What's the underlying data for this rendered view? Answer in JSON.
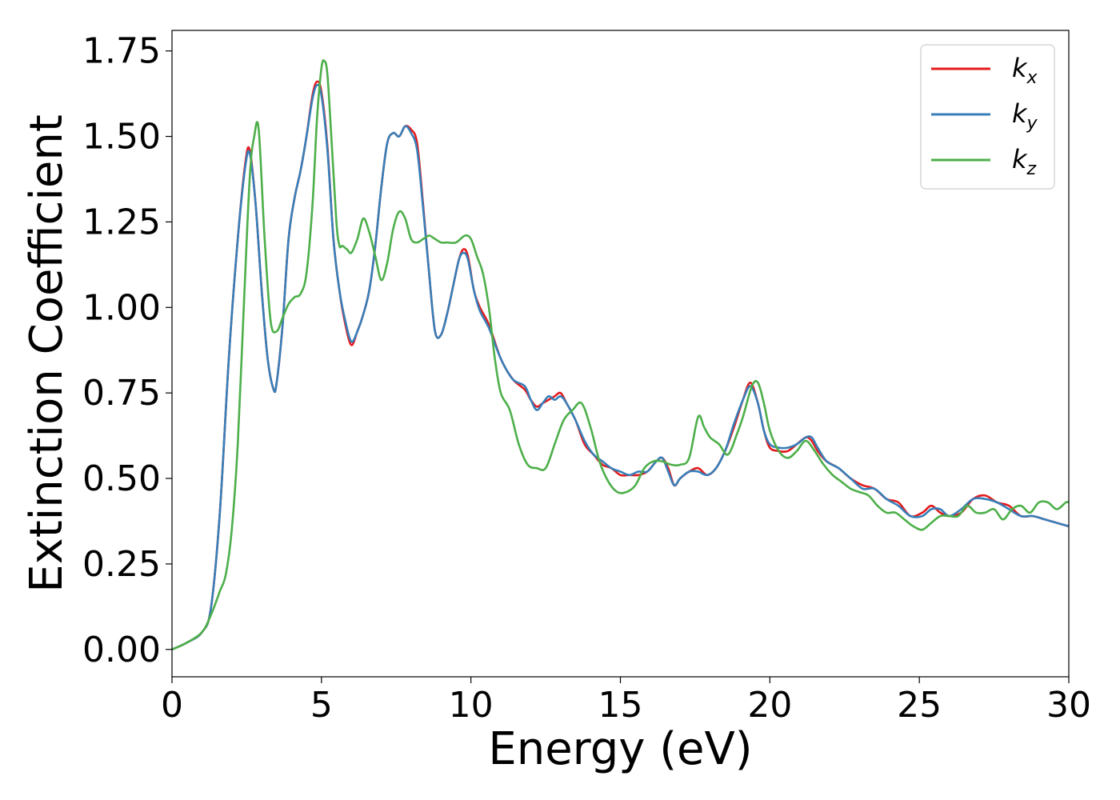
{
  "chart_data": {
    "type": "line",
    "xlabel": "Energy (eV)",
    "ylabel": "Extinction Coefficient",
    "xlim": [
      0,
      30
    ],
    "ylim": [
      -0.08,
      1.81
    ],
    "xticks": [
      0,
      5,
      10,
      15,
      20,
      25,
      30
    ],
    "xtick_labels": [
      "0",
      "5",
      "10",
      "15",
      "20",
      "25",
      "30"
    ],
    "yticks": [
      0.0,
      0.25,
      0.5,
      0.75,
      1.0,
      1.25,
      1.5,
      1.75
    ],
    "ytick_labels": [
      "0.00",
      "0.25",
      "0.50",
      "0.75",
      "1.00",
      "1.25",
      "1.50",
      "1.75"
    ],
    "grid": false,
    "legend_position": "top-right",
    "series": [
      {
        "name": "k_x",
        "label_main": "k",
        "label_sub": "x",
        "color": "#e41a1c",
        "x": [
          0,
          0.5,
          1.0,
          1.3,
          1.6,
          1.9,
          2.2,
          2.45,
          2.6,
          2.8,
          3.0,
          3.2,
          3.4,
          3.5,
          3.7,
          3.9,
          4.1,
          4.3,
          4.5,
          4.7,
          4.85,
          5.0,
          5.2,
          5.4,
          5.6,
          5.8,
          6.0,
          6.2,
          6.4,
          6.6,
          6.8,
          7.0,
          7.2,
          7.4,
          7.6,
          7.8,
          8.0,
          8.2,
          8.4,
          8.6,
          8.8,
          9.0,
          9.2,
          9.4,
          9.6,
          9.75,
          9.9,
          10.1,
          10.3,
          10.6,
          11.0,
          11.4,
          11.8,
          12.0,
          12.2,
          12.4,
          12.6,
          12.8,
          13.0,
          13.2,
          13.5,
          13.8,
          14.1,
          14.4,
          14.7,
          15.0,
          15.3,
          15.6,
          15.9,
          16.2,
          16.4,
          16.6,
          16.8,
          17.0,
          17.3,
          17.6,
          17.9,
          18.2,
          18.5,
          18.8,
          19.1,
          19.35,
          19.6,
          19.8,
          20.0,
          20.3,
          20.6,
          20.9,
          21.2,
          21.4,
          21.6,
          21.9,
          22.3,
          22.7,
          23.1,
          23.5,
          23.9,
          24.3,
          24.7,
          25.1,
          25.4,
          25.7,
          26.0,
          26.4,
          26.8,
          27.2,
          27.6,
          28.0,
          28.4,
          28.8,
          29.2,
          29.6,
          30.0
        ],
        "y": [
          0.0,
          0.02,
          0.05,
          0.12,
          0.4,
          0.85,
          1.2,
          1.42,
          1.46,
          1.3,
          1.05,
          0.85,
          0.76,
          0.78,
          0.95,
          1.2,
          1.32,
          1.4,
          1.5,
          1.62,
          1.66,
          1.63,
          1.47,
          1.2,
          1.05,
          0.95,
          0.89,
          0.93,
          0.98,
          1.05,
          1.18,
          1.35,
          1.48,
          1.51,
          1.5,
          1.53,
          1.52,
          1.48,
          1.3,
          1.1,
          0.93,
          0.92,
          0.98,
          1.06,
          1.14,
          1.17,
          1.15,
          1.05,
          1.0,
          0.95,
          0.85,
          0.79,
          0.76,
          0.73,
          0.71,
          0.72,
          0.73,
          0.74,
          0.75,
          0.72,
          0.67,
          0.6,
          0.57,
          0.54,
          0.53,
          0.51,
          0.51,
          0.51,
          0.52,
          0.55,
          0.56,
          0.53,
          0.48,
          0.5,
          0.52,
          0.53,
          0.51,
          0.53,
          0.58,
          0.65,
          0.73,
          0.78,
          0.72,
          0.64,
          0.59,
          0.58,
          0.58,
          0.6,
          0.62,
          0.61,
          0.58,
          0.55,
          0.53,
          0.5,
          0.48,
          0.47,
          0.44,
          0.43,
          0.39,
          0.4,
          0.42,
          0.4,
          0.39,
          0.4,
          0.44,
          0.45,
          0.43,
          0.42,
          0.39,
          0.39,
          0.38,
          0.37,
          0.36
        ]
      },
      {
        "name": "k_y",
        "label_main": "k",
        "label_sub": "y",
        "color": "#377eb8",
        "x": [
          0,
          0.5,
          1.0,
          1.3,
          1.6,
          1.9,
          2.2,
          2.45,
          2.6,
          2.8,
          3.0,
          3.2,
          3.4,
          3.5,
          3.7,
          3.9,
          4.1,
          4.3,
          4.5,
          4.7,
          4.85,
          5.0,
          5.2,
          5.4,
          5.6,
          5.8,
          6.0,
          6.2,
          6.4,
          6.6,
          6.8,
          7.0,
          7.2,
          7.4,
          7.6,
          7.8,
          8.0,
          8.2,
          8.4,
          8.6,
          8.8,
          9.0,
          9.2,
          9.4,
          9.6,
          9.75,
          9.9,
          10.1,
          10.3,
          10.6,
          11.0,
          11.4,
          11.8,
          12.0,
          12.2,
          12.4,
          12.6,
          12.8,
          13.0,
          13.2,
          13.5,
          13.8,
          14.1,
          14.4,
          14.7,
          15.0,
          15.3,
          15.6,
          15.9,
          16.2,
          16.4,
          16.6,
          16.8,
          17.0,
          17.3,
          17.6,
          17.9,
          18.2,
          18.5,
          18.8,
          19.1,
          19.35,
          19.6,
          19.8,
          20.0,
          20.3,
          20.6,
          20.9,
          21.2,
          21.4,
          21.6,
          21.9,
          22.3,
          22.7,
          23.1,
          23.5,
          23.9,
          24.3,
          24.7,
          25.1,
          25.4,
          25.7,
          26.0,
          26.4,
          26.8,
          27.2,
          27.6,
          28.0,
          28.4,
          28.8,
          29.2,
          29.6,
          30.0
        ],
        "y": [
          0.0,
          0.02,
          0.05,
          0.12,
          0.4,
          0.85,
          1.2,
          1.41,
          1.45,
          1.3,
          1.05,
          0.85,
          0.76,
          0.78,
          0.95,
          1.2,
          1.32,
          1.4,
          1.5,
          1.61,
          1.65,
          1.62,
          1.46,
          1.2,
          1.05,
          0.96,
          0.9,
          0.93,
          0.98,
          1.05,
          1.18,
          1.35,
          1.48,
          1.51,
          1.5,
          1.53,
          1.51,
          1.46,
          1.29,
          1.1,
          0.93,
          0.92,
          0.98,
          1.06,
          1.14,
          1.16,
          1.14,
          1.05,
          0.99,
          0.94,
          0.85,
          0.79,
          0.77,
          0.73,
          0.7,
          0.72,
          0.74,
          0.73,
          0.74,
          0.72,
          0.67,
          0.61,
          0.57,
          0.55,
          0.53,
          0.52,
          0.51,
          0.52,
          0.52,
          0.55,
          0.56,
          0.52,
          0.48,
          0.5,
          0.52,
          0.52,
          0.51,
          0.53,
          0.58,
          0.66,
          0.73,
          0.77,
          0.72,
          0.64,
          0.6,
          0.59,
          0.59,
          0.6,
          0.62,
          0.62,
          0.59,
          0.55,
          0.53,
          0.5,
          0.47,
          0.47,
          0.44,
          0.42,
          0.39,
          0.39,
          0.41,
          0.41,
          0.39,
          0.41,
          0.44,
          0.44,
          0.43,
          0.41,
          0.39,
          0.39,
          0.38,
          0.37,
          0.36
        ]
      },
      {
        "name": "k_z",
        "label_main": "k",
        "label_sub": "z",
        "color": "#4daf4a",
        "x": [
          0,
          0.5,
          1.0,
          1.3,
          1.6,
          1.8,
          2.0,
          2.2,
          2.4,
          2.6,
          2.75,
          2.9,
          3.1,
          3.3,
          3.5,
          3.7,
          3.9,
          4.1,
          4.3,
          4.5,
          4.7,
          4.85,
          5.0,
          5.1,
          5.2,
          5.35,
          5.5,
          5.6,
          5.7,
          5.85,
          6.0,
          6.2,
          6.4,
          6.6,
          6.8,
          7.0,
          7.2,
          7.4,
          7.6,
          7.8,
          8.0,
          8.2,
          8.4,
          8.6,
          8.8,
          9.0,
          9.2,
          9.5,
          9.8,
          10.0,
          10.2,
          10.4,
          10.6,
          10.8,
          11.0,
          11.3,
          11.6,
          11.9,
          12.2,
          12.5,
          12.8,
          13.1,
          13.4,
          13.7,
          14.0,
          14.3,
          14.6,
          14.9,
          15.2,
          15.5,
          15.8,
          16.1,
          16.4,
          16.7,
          17.0,
          17.3,
          17.6,
          17.8,
          18.0,
          18.3,
          18.6,
          18.9,
          19.1,
          19.4,
          19.6,
          19.8,
          20.0,
          20.3,
          20.6,
          20.9,
          21.2,
          21.5,
          21.8,
          22.1,
          22.4,
          22.7,
          23.0,
          23.3,
          23.6,
          23.9,
          24.2,
          24.5,
          24.8,
          25.1,
          25.4,
          25.7,
          26.0,
          26.3,
          26.6,
          26.9,
          27.2,
          27.5,
          27.8,
          28.1,
          28.4,
          28.7,
          29.0,
          29.3,
          29.6,
          29.9,
          30.0
        ],
        "y": [
          0.0,
          0.02,
          0.05,
          0.1,
          0.17,
          0.22,
          0.35,
          0.6,
          1.0,
          1.38,
          1.5,
          1.52,
          1.2,
          0.96,
          0.93,
          0.97,
          1.01,
          1.03,
          1.04,
          1.1,
          1.3,
          1.55,
          1.7,
          1.72,
          1.68,
          1.47,
          1.25,
          1.18,
          1.18,
          1.17,
          1.16,
          1.2,
          1.26,
          1.22,
          1.15,
          1.08,
          1.13,
          1.23,
          1.28,
          1.26,
          1.2,
          1.19,
          1.2,
          1.21,
          1.2,
          1.19,
          1.19,
          1.19,
          1.21,
          1.2,
          1.15,
          1.1,
          1.0,
          0.85,
          0.75,
          0.7,
          0.6,
          0.54,
          0.53,
          0.53,
          0.6,
          0.67,
          0.7,
          0.72,
          0.65,
          0.55,
          0.49,
          0.46,
          0.46,
          0.48,
          0.53,
          0.55,
          0.55,
          0.54,
          0.54,
          0.56,
          0.68,
          0.65,
          0.62,
          0.6,
          0.57,
          0.63,
          0.68,
          0.77,
          0.78,
          0.72,
          0.64,
          0.58,
          0.56,
          0.58,
          0.61,
          0.58,
          0.54,
          0.51,
          0.49,
          0.47,
          0.46,
          0.45,
          0.42,
          0.4,
          0.4,
          0.38,
          0.36,
          0.35,
          0.37,
          0.39,
          0.39,
          0.39,
          0.42,
          0.4,
          0.4,
          0.41,
          0.38,
          0.41,
          0.42,
          0.4,
          0.43,
          0.43,
          0.41,
          0.43,
          0.43
        ]
      }
    ]
  }
}
